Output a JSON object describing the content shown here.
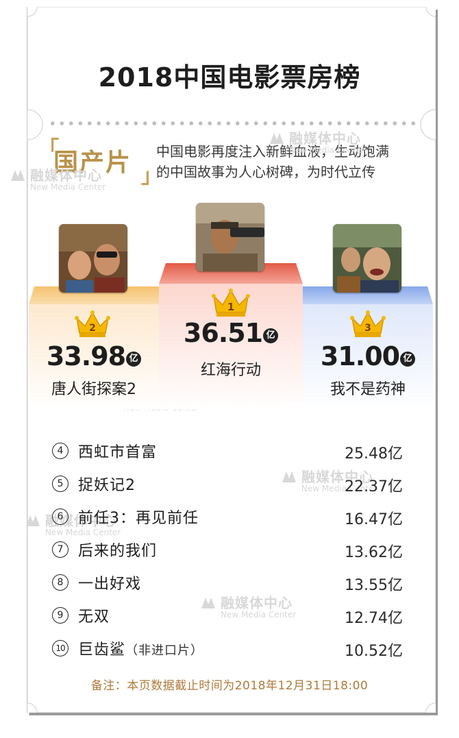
{
  "title": "2018中国电影票房榜",
  "category": {
    "open_bracket": "「",
    "label": "国产片",
    "close_bracket": "」",
    "intro_line1": "中国电影再度注入新鲜血液，生动饱满",
    "intro_line2": "的中国故事为人心树碑，为时代立传"
  },
  "watermark": {
    "cn": "融媒体中心",
    "en": "New Media Center"
  },
  "podium": [
    {
      "rank": "2",
      "name": "唐人街探案2",
      "amount": "33.98",
      "unit": "亿",
      "top_color": "#f7c77d",
      "body_color": "#fdf1e0",
      "crown_color": "#f2b200"
    },
    {
      "rank": "1",
      "name": "红海行动",
      "amount": "36.51",
      "unit": "亿",
      "top_color": "#e86a57",
      "body_color": "#fde9e5",
      "crown_color": "#f2b200"
    },
    {
      "rank": "3",
      "name": "我不是药神",
      "amount": "31.00",
      "unit": "亿",
      "top_color": "#8eb0ec",
      "body_color": "#e9f0fc",
      "crown_color": "#f2b200"
    }
  ],
  "ranking": [
    {
      "rank": "4",
      "name": "西虹市首富",
      "note": "",
      "value": "25.48亿"
    },
    {
      "rank": "5",
      "name": "捉妖记2",
      "note": "",
      "value": "22.37亿"
    },
    {
      "rank": "6",
      "name": "前任3：再见前任",
      "note": "",
      "value": "16.47亿"
    },
    {
      "rank": "7",
      "name": "后来的我们",
      "note": "",
      "value": "13.62亿"
    },
    {
      "rank": "8",
      "name": "一出好戏",
      "note": "",
      "value": "13.55亿"
    },
    {
      "rank": "9",
      "name": "无双",
      "note": "",
      "value": "12.74亿"
    },
    {
      "rank": "10",
      "name": "巨齿鲨",
      "note": "（非进口片）",
      "value": "10.52亿"
    }
  ],
  "footnote": "备注：本页数据截止时间为2018年12月31日18:00"
}
